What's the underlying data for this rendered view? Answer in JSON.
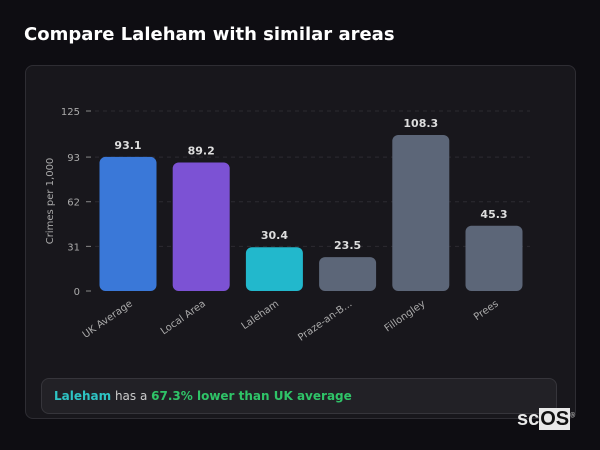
{
  "header": {
    "title": "Compare Laleham with similar areas"
  },
  "chart_data": {
    "type": "bar",
    "title": "Compare Laleham with similar areas",
    "ylabel": "Crimes per 1,000",
    "xlabel": "",
    "ylim": [
      0,
      125
    ],
    "yticks": [
      0,
      31,
      62,
      93,
      125
    ],
    "grid": true,
    "categories": [
      "UK Average",
      "Local Area",
      "Laleham",
      "Praze-an-B...",
      "Fillongley",
      "Prees"
    ],
    "values": [
      93.1,
      89.2,
      30.4,
      23.5,
      108.3,
      45.3
    ],
    "value_labels": [
      "93.1",
      "89.2",
      "30.4",
      "23.5",
      "108.3",
      "45.3"
    ],
    "colors": [
      "#3a78d8",
      "#7c52d4",
      "#22b8cc",
      "#5c6678",
      "#5c6678",
      "#5c6678"
    ]
  },
  "summary": {
    "area": "Laleham",
    "middle": " has a ",
    "highlight": "67.3% lower than UK average"
  },
  "logo": {
    "text_a": "sc",
    "text_b": "OS",
    "mark": "®"
  }
}
